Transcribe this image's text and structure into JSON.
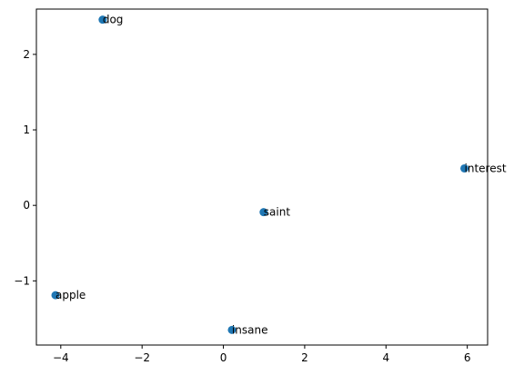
{
  "chart_data": {
    "type": "scatter",
    "title": "",
    "xlabel": "",
    "ylabel": "",
    "xlim": [
      -4.6,
      6.5
    ],
    "ylim": [
      -1.85,
      2.6
    ],
    "x_ticks": [
      -4,
      -2,
      0,
      2,
      4,
      6
    ],
    "y_ticks": [
      -1,
      0,
      1,
      2
    ],
    "x_tick_labels": [
      "−4",
      "−2",
      "0",
      "2",
      "4",
      "6"
    ],
    "y_tick_labels": [
      "−1",
      "0",
      "1",
      "2"
    ],
    "marker_color": "#1f77b4",
    "grid": false,
    "points": [
      {
        "label": "dog",
        "x": -2.97,
        "y": 2.46
      },
      {
        "label": "interest",
        "x": 5.93,
        "y": 0.49
      },
      {
        "label": "saint",
        "x": 0.99,
        "y": -0.09
      },
      {
        "label": "apple",
        "x": -4.13,
        "y": -1.19
      },
      {
        "label": "insane",
        "x": 0.21,
        "y": -1.65
      }
    ]
  }
}
